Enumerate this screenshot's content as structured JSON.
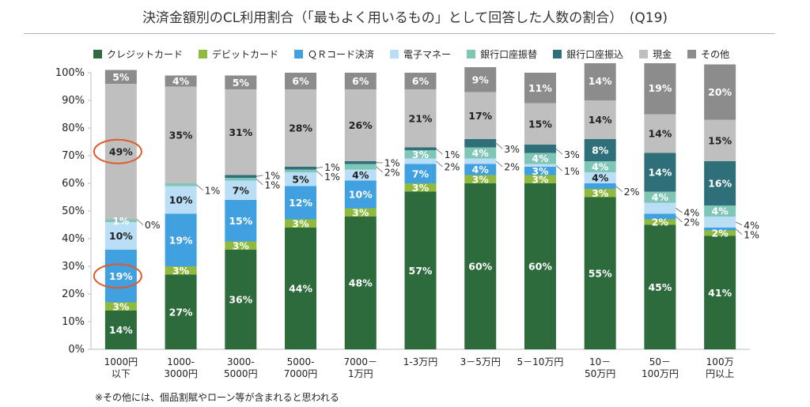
{
  "chart_data": {
    "type": "bar",
    "stacked": true,
    "title": "決済金額別のCL利用割合（「最もよく用いるもの」として回答した人数の割合）　(Q19)",
    "footnote": "※その他には、個品割賦やローン等が含まれると思われる",
    "ylim": [
      0,
      100
    ],
    "yticks": [
      0,
      10,
      20,
      30,
      40,
      50,
      60,
      70,
      80,
      90,
      100
    ],
    "ytick_suffix": "%",
    "grid": false,
    "legend_position": "top",
    "categories": [
      [
        "1000円",
        "以下"
      ],
      [
        "1000-",
        "3000円"
      ],
      [
        "3000-",
        "5000円"
      ],
      [
        "5000-",
        "7000円"
      ],
      [
        "7000－",
        "1万円"
      ],
      [
        "1-3万円"
      ],
      [
        "3－5万円"
      ],
      [
        "5－10万円"
      ],
      [
        "10－",
        "50万円"
      ],
      [
        "50－",
        "100万円"
      ],
      [
        "100万",
        "円以上"
      ]
    ],
    "series": [
      {
        "name": "クレジットカード",
        "color": "#2e6b3c",
        "text_color": "#ffffff",
        "values": [
          14,
          27,
          36,
          44,
          48,
          57,
          60,
          60,
          55,
          45,
          41
        ],
        "labels": [
          "14%",
          "27%",
          "36%",
          "44%",
          "48%",
          "57%",
          "60%",
          "60%",
          "55%",
          "45%",
          "41%"
        ]
      },
      {
        "name": "デビットカード",
        "color": "#8fba3f",
        "text_color": "#ffffff",
        "values": [
          3,
          3,
          3,
          3,
          3,
          3,
          3,
          3,
          3,
          2,
          2
        ],
        "labels": [
          "3%",
          "3%",
          "3%",
          "3%",
          "3%",
          "3%",
          "3%",
          "3%",
          "3%",
          "2%",
          "2%"
        ]
      },
      {
        "name": "ＱＲコード決済",
        "color": "#41a0df",
        "text_color": "#ffffff",
        "values": [
          19,
          19,
          15,
          12,
          10,
          7,
          4,
          3,
          2,
          2,
          1
        ],
        "labels": [
          "19%",
          "19%",
          "15%",
          "12%",
          "10%",
          "7%",
          "4%",
          "3%",
          "2%",
          "2%",
          "1%"
        ]
      },
      {
        "name": "電子マネー",
        "color": "#b9def5",
        "text_color": "#222222",
        "values": [
          10,
          10,
          7,
          5,
          4,
          2,
          2,
          1,
          4,
          4,
          4
        ],
        "labels": [
          "10%",
          "10%",
          "7%",
          "5%",
          "4%",
          "2%",
          "2%",
          "1%",
          "4%",
          "4%",
          "4%"
        ]
      },
      {
        "name": "銀行口座振替",
        "color": "#7fc6b6",
        "text_color": "#ffffff",
        "values": [
          1,
          1,
          1,
          1,
          2,
          3,
          4,
          4,
          4,
          4,
          4
        ],
        "labels": [
          "1%",
          "1%",
          "1%",
          "1%",
          "2%",
          "3%",
          "4%",
          "4%",
          "4%",
          "4%",
          "4%"
        ]
      },
      {
        "name": "銀行口座振込",
        "color": "#2f6f7a",
        "text_color": "#ffffff",
        "values": [
          0,
          0,
          1,
          1,
          1,
          1,
          3,
          3,
          8,
          14,
          16
        ],
        "labels": [
          "0%",
          "0%",
          "1%",
          "1%",
          "1%",
          "1%",
          "3%",
          "3%",
          "8%",
          "14%",
          "16%"
        ]
      },
      {
        "name": "現金",
        "color": "#bfbfbf",
        "text_color": "#222222",
        "values": [
          49,
          35,
          31,
          28,
          26,
          21,
          17,
          15,
          14,
          14,
          15
        ],
        "labels": [
          "49%",
          "35%",
          "31%",
          "28%",
          "26%",
          "21%",
          "17%",
          "15%",
          "14%",
          "14%",
          "15%"
        ]
      },
      {
        "name": "その他",
        "color": "#8c8c8c",
        "text_color": "#ffffff",
        "values": [
          5,
          4,
          5,
          6,
          6,
          6,
          9,
          11,
          14,
          19,
          20
        ],
        "labels": [
          "5%",
          "4%",
          "5%",
          "6%",
          "6%",
          "6%",
          "9%",
          "11%",
          "14%",
          "19%",
          "20%"
        ]
      }
    ],
    "outside_labels": [
      {
        "category": 0,
        "series": 5
      },
      {
        "category": 1,
        "series": 4
      },
      {
        "category": 2,
        "series": 4
      },
      {
        "category": 2,
        "series": 5
      },
      {
        "category": 3,
        "series": 4
      },
      {
        "category": 3,
        "series": 5
      },
      {
        "category": 4,
        "series": 4
      },
      {
        "category": 4,
        "series": 5
      },
      {
        "category": 5,
        "series": 3
      },
      {
        "category": 5,
        "series": 5
      },
      {
        "category": 6,
        "series": 3
      },
      {
        "category": 6,
        "series": 5
      },
      {
        "category": 7,
        "series": 3
      },
      {
        "category": 7,
        "series": 5
      },
      {
        "category": 8,
        "series": 2
      },
      {
        "category": 9,
        "series": 2
      },
      {
        "category": 9,
        "series": 3
      },
      {
        "category": 10,
        "series": 2
      },
      {
        "category": 10,
        "series": 3
      }
    ],
    "annotations": [
      {
        "type": "ellipse",
        "category": 0,
        "series": 6,
        "color": "#e05a2b"
      },
      {
        "type": "ellipse",
        "category": 0,
        "series": 2,
        "color": "#e05a2b"
      }
    ]
  }
}
